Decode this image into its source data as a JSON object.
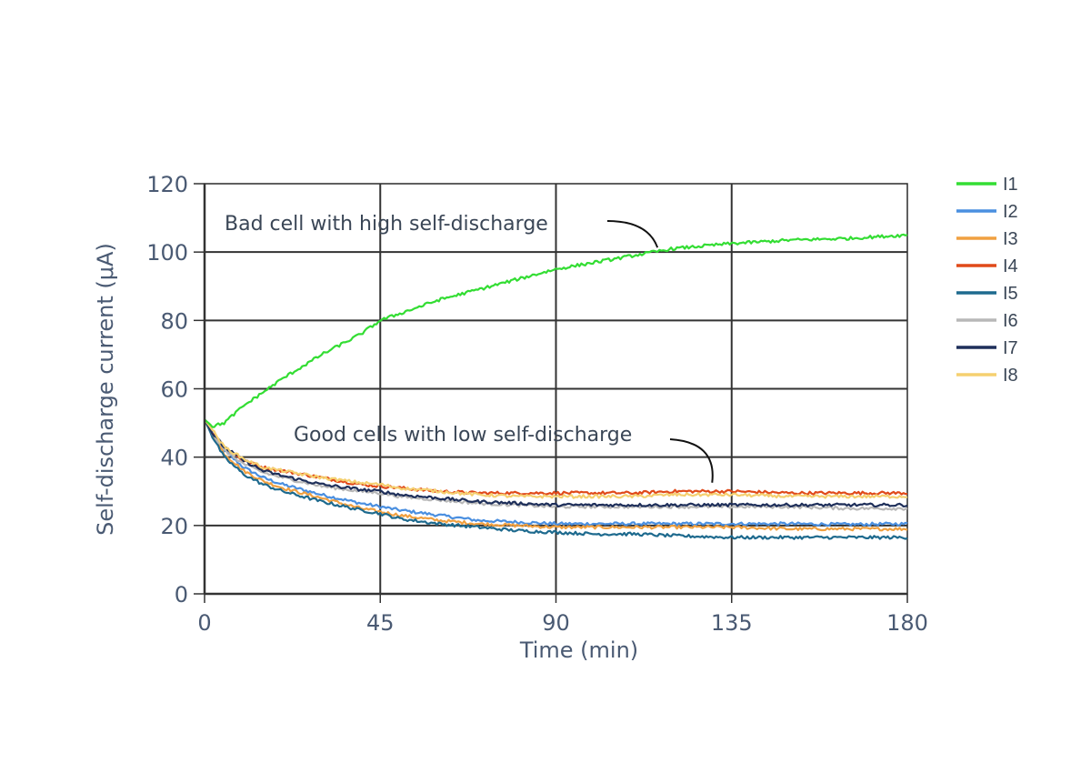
{
  "chart_data": {
    "type": "line",
    "xlabel": "Time (min)",
    "ylabel": "Self-discharge current (μA)",
    "xlim": [
      0,
      180
    ],
    "ylim": [
      0,
      120
    ],
    "xticks": [
      "0",
      "45",
      "90",
      "135",
      "180"
    ],
    "yticks": [
      "0",
      "20",
      "40",
      "60",
      "80",
      "100",
      "120"
    ],
    "grid": true,
    "legend_position": "right",
    "annotations": [
      {
        "text": "Bad cell with high self-discharge",
        "target": [
          116,
          100
        ]
      },
      {
        "text": "Good cells with low self-discharge",
        "target": [
          130,
          32
        ]
      }
    ],
    "x": [
      0,
      2,
      5,
      10,
      15,
      20,
      30,
      40,
      45,
      50,
      60,
      70,
      80,
      90,
      100,
      110,
      120,
      135,
      150,
      165,
      180
    ],
    "series": [
      {
        "name": "I1",
        "color": "#33dd33",
        "values": [
          51,
          49,
          50,
          55,
          59,
          63,
          70,
          76,
          80,
          82,
          86,
          89,
          92,
          95,
          97,
          99,
          101,
          102.5,
          103.5,
          104,
          105
        ]
      },
      {
        "name": "I2",
        "color": "#4a8fe0",
        "values": [
          51,
          47,
          42,
          37,
          34,
          32,
          29,
          26.5,
          25.5,
          24.5,
          23,
          21.5,
          21,
          20.5,
          20.5,
          20.5,
          20.5,
          20.5,
          20.5,
          20.3,
          20.5
        ]
      },
      {
        "name": "I3",
        "color": "#f0a040",
        "values": [
          51,
          47,
          41,
          36,
          33,
          31,
          28,
          25,
          24,
          23,
          21.5,
          20.5,
          20,
          19.5,
          19.5,
          19.5,
          19.5,
          19.5,
          19,
          19,
          19
        ]
      },
      {
        "name": "I4",
        "color": "#e04a1a",
        "values": [
          51,
          47,
          43,
          39,
          37,
          36,
          34,
          32,
          31.5,
          31,
          30,
          29.5,
          29.5,
          29.5,
          29.5,
          29.5,
          30,
          30,
          29.5,
          29.5,
          29.5
        ]
      },
      {
        "name": "I5",
        "color": "#1e6a8e",
        "values": [
          51,
          46,
          40,
          35,
          32,
          30,
          27,
          24.5,
          23.5,
          22,
          20.5,
          19.5,
          18.5,
          18,
          17.5,
          17.5,
          17,
          16.5,
          16.5,
          16.5,
          16.5
        ]
      },
      {
        "name": "I6",
        "color": "#b8b8b8",
        "values": [
          51,
          47,
          42,
          38,
          35.5,
          34,
          31.5,
          30,
          29.5,
          28.5,
          27.5,
          26.5,
          26,
          25.5,
          25.5,
          25.5,
          25.5,
          25.5,
          25.5,
          25,
          25
        ]
      },
      {
        "name": "I7",
        "color": "#1e2f5a",
        "values": [
          51,
          47,
          43,
          39,
          36,
          34.5,
          32,
          30.5,
          30,
          29,
          28,
          27,
          26.5,
          26,
          26,
          26,
          26,
          26,
          26,
          26,
          26
        ]
      },
      {
        "name": "I8",
        "color": "#f5d070",
        "values": [
          51,
          48,
          43,
          39.5,
          37,
          36,
          34,
          32.5,
          32,
          31,
          30,
          29,
          28.5,
          28.5,
          28.5,
          28.5,
          29,
          29,
          28.5,
          28.5,
          28.5
        ]
      }
    ]
  }
}
